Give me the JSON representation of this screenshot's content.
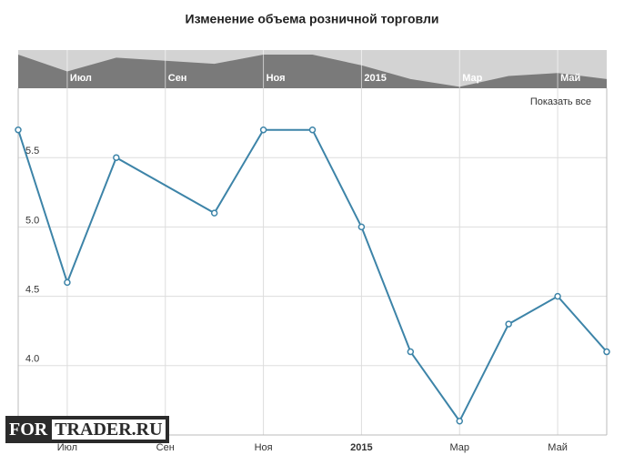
{
  "chart_data": {
    "type": "line",
    "title": "Изменение объема розничной торговли",
    "x": [
      "2014-06",
      "2014-07",
      "2014-08",
      "2014-10",
      "2014-11",
      "2014-12",
      "2015-01",
      "2015-02",
      "2015-03",
      "2015-04",
      "2015-05",
      "2015-06"
    ],
    "series": [
      {
        "color": "#3d84a8",
        "values": [
          5.7,
          4.6,
          5.5,
          5.1,
          5.7,
          5.7,
          5.0,
          4.1,
          3.6,
          4.3,
          4.5,
          4.1
        ]
      }
    ],
    "xlim": [
      "2014-06",
      "2015-06"
    ],
    "xticks": [
      {
        "value": "2014-07",
        "label": "Июл"
      },
      {
        "value": "2014-09",
        "label": "Сен"
      },
      {
        "value": "2014-11",
        "label": "Ноя"
      },
      {
        "value": "2015-01",
        "label": "2015"
      },
      {
        "value": "2015-03",
        "label": "Мар"
      },
      {
        "value": "2015-05",
        "label": "Май"
      }
    ],
    "ylim": [
      3.5,
      6.0
    ],
    "yticks": [
      {
        "value": 4,
        "label": "4.0"
      },
      4.5,
      {
        "value": 5,
        "label": "5.0"
      },
      5.5
    ],
    "grid": true,
    "navigator": true,
    "reset_button": "Показать все"
  },
  "watermark": [
    "FOR",
    "TRADER.RU"
  ]
}
